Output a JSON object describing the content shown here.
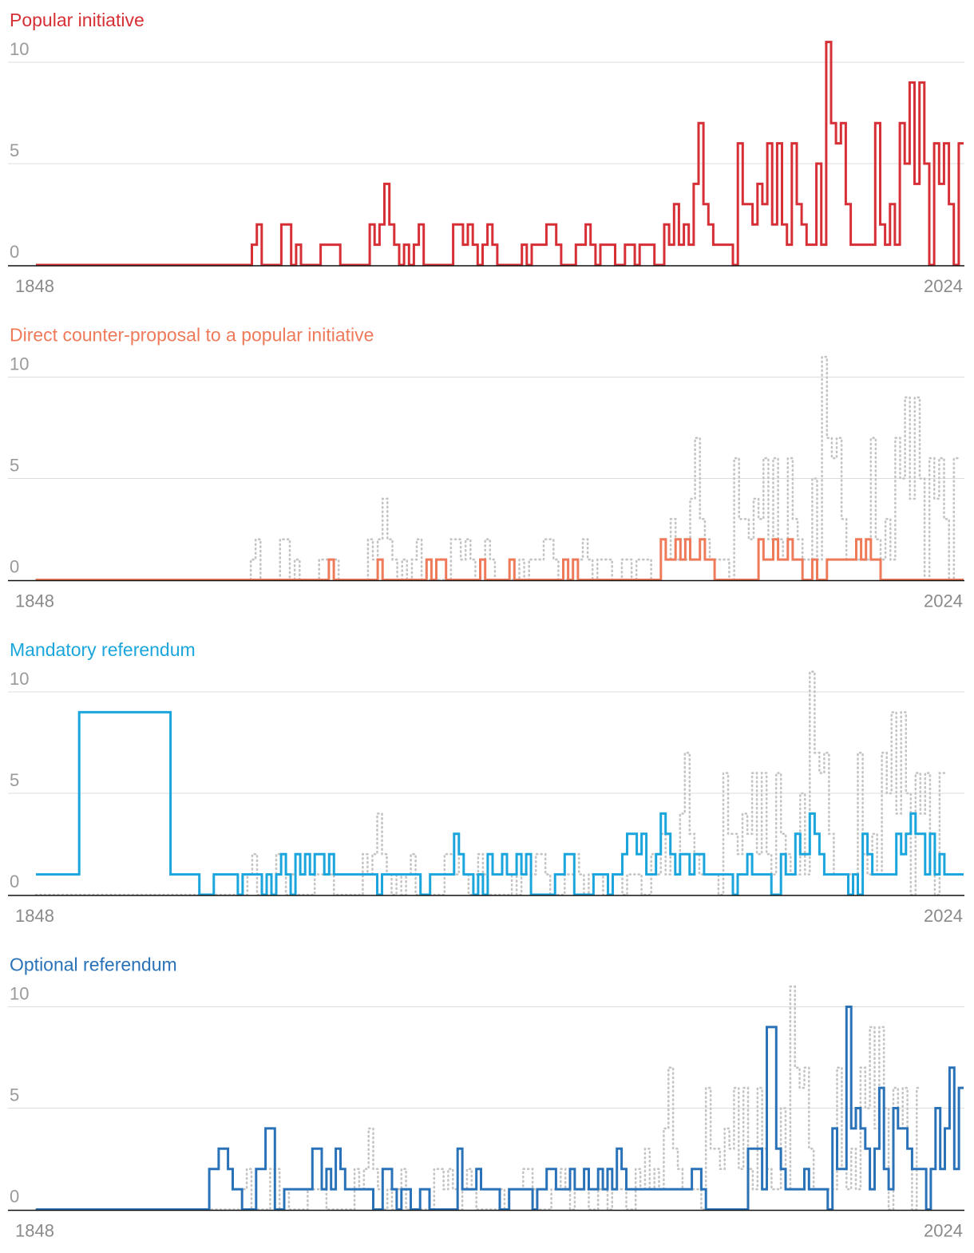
{
  "chart_data": [
    {
      "type": "line",
      "title": "Popular initiative",
      "color": "#d62f36",
      "x_start_label": "1848",
      "x_end_label": "2024",
      "yticks": [
        "0",
        "5",
        "10"
      ],
      "ylim": [
        0,
        10.5
      ],
      "xlim": [
        1848,
        2024
      ],
      "show_background": false,
      "values": [
        0,
        0,
        0,
        0,
        0,
        0,
        0,
        0,
        0,
        0,
        0,
        0,
        0,
        0,
        0,
        0,
        0,
        0,
        0,
        0,
        0,
        0,
        0,
        0,
        0,
        0,
        0,
        0,
        0,
        0,
        0,
        0,
        0,
        0,
        0,
        0,
        0,
        0,
        0,
        0,
        0,
        0,
        0,
        0,
        1,
        2,
        0,
        0,
        0,
        0,
        2,
        2,
        0,
        1,
        0,
        0,
        0,
        0,
        1,
        1,
        1,
        1,
        0,
        0,
        0,
        0,
        0,
        0,
        2,
        1,
        2,
        4,
        2,
        1,
        0,
        1,
        0,
        1,
        2,
        0,
        0,
        0,
        0,
        0,
        0,
        2,
        2,
        1,
        2,
        1,
        0,
        1,
        2,
        1,
        0,
        0,
        0,
        0,
        0,
        1,
        0,
        1,
        1,
        1,
        2,
        2,
        1,
        0,
        0,
        0,
        1,
        1,
        2,
        1,
        0,
        1,
        1,
        1,
        0,
        0,
        1,
        1,
        0,
        1,
        1,
        1,
        0,
        0,
        2,
        1,
        3,
        1,
        2,
        1,
        4,
        7,
        3,
        2,
        1,
        1,
        1,
        1,
        0,
        6,
        3,
        3,
        2,
        4,
        3,
        6,
        2,
        6,
        2,
        1,
        6,
        3,
        2,
        1,
        1,
        5,
        1,
        11,
        7,
        6,
        7,
        3,
        1,
        1,
        1,
        1,
        1,
        7,
        2,
        1,
        3,
        1,
        7,
        5,
        9,
        4,
        9,
        5,
        0,
        6,
        4,
        6,
        3,
        0,
        6
      ]
    },
    {
      "type": "line",
      "title": "Direct counter-proposal to a popular initiative",
      "color": "#ef7a5a",
      "x_start_label": "1848",
      "x_end_label": "2024",
      "yticks": [
        "0",
        "5",
        "10"
      ],
      "ylim": [
        0,
        10.5
      ],
      "xlim": [
        1848,
        2024
      ],
      "show_background": true,
      "values": [
        0,
        0,
        0,
        0,
        0,
        0,
        0,
        0,
        0,
        0,
        0,
        0,
        0,
        0,
        0,
        0,
        0,
        0,
        0,
        0,
        0,
        0,
        0,
        0,
        0,
        0,
        0,
        0,
        0,
        0,
        0,
        0,
        0,
        0,
        0,
        0,
        0,
        0,
        0,
        0,
        0,
        0,
        0,
        0,
        0,
        0,
        0,
        0,
        0,
        0,
        0,
        0,
        0,
        0,
        0,
        0,
        0,
        0,
        0,
        0,
        1,
        0,
        0,
        0,
        0,
        0,
        0,
        0,
        0,
        0,
        1,
        0,
        0,
        0,
        0,
        0,
        0,
        0,
        0,
        0,
        1,
        0,
        1,
        1,
        0,
        0,
        0,
        0,
        0,
        0,
        0,
        1,
        0,
        0,
        0,
        0,
        0,
        1,
        0,
        0,
        0,
        0,
        0,
        0,
        0,
        0,
        0,
        0,
        1,
        0,
        1,
        0,
        0,
        0,
        0,
        0,
        0,
        0,
        0,
        0,
        0,
        0,
        0,
        0,
        0,
        0,
        0,
        0,
        2,
        1,
        1,
        2,
        1,
        2,
        1,
        1,
        2,
        1,
        1,
        0,
        0,
        0,
        0,
        0,
        0,
        0,
        0,
        0,
        2,
        1,
        1,
        2,
        1,
        1,
        2,
        1,
        1,
        0,
        0,
        1,
        0,
        0,
        1,
        1,
        1,
        1,
        1,
        1,
        2,
        1,
        2,
        1,
        1,
        0,
        0,
        0,
        0,
        0,
        0,
        0,
        0,
        0,
        0,
        0,
        0,
        0,
        0,
        0,
        0,
        0
      ]
    },
    {
      "type": "line",
      "title": "Mandatory referendum",
      "color": "#1aa6dc",
      "x_start_label": "1848",
      "x_end_label": "2024",
      "yticks": [
        "0",
        "5",
        "10"
      ],
      "ylim": [
        0,
        10.5
      ],
      "xlim": [
        1848,
        2024
      ],
      "show_background": true,
      "values": [
        1,
        1,
        1,
        1,
        1,
        1,
        1,
        1,
        1,
        9,
        9,
        9,
        9,
        9,
        9,
        9,
        9,
        9,
        9,
        9,
        9,
        9,
        9,
        9,
        9,
        9,
        9,
        9,
        1,
        1,
        1,
        1,
        1,
        1,
        0,
        0,
        0,
        1,
        1,
        1,
        1,
        1,
        0,
        1,
        1,
        1,
        1,
        0,
        1,
        0,
        1,
        2,
        1,
        0,
        2,
        1,
        2,
        1,
        2,
        2,
        1,
        2,
        1,
        1,
        1,
        1,
        1,
        1,
        1,
        1,
        1,
        0,
        1,
        1,
        1,
        1,
        1,
        1,
        1,
        1,
        0,
        0,
        1,
        1,
        1,
        1,
        1,
        3,
        2,
        1,
        1,
        0,
        1,
        0,
        2,
        1,
        1,
        2,
        1,
        1,
        2,
        1,
        2,
        0,
        0,
        0,
        0,
        0,
        1,
        1,
        2,
        2,
        0,
        0,
        0,
        0,
        1,
        1,
        1,
        0,
        1,
        1,
        2,
        3,
        3,
        2,
        3,
        1,
        1,
        2,
        4,
        3,
        2,
        1,
        2,
        2,
        1,
        2,
        2,
        1,
        1,
        1,
        1,
        1,
        1,
        0,
        1,
        1,
        2,
        1,
        1,
        1,
        1,
        0,
        0,
        2,
        1,
        1,
        3,
        2,
        2,
        4,
        3,
        2,
        1,
        1,
        1,
        1,
        1,
        0,
        1,
        0,
        3,
        2,
        1,
        1,
        1,
        1,
        1,
        3,
        2,
        3,
        4,
        3,
        3,
        1,
        3,
        1,
        2,
        1,
        1,
        1,
        1
      ]
    },
    {
      "type": "line",
      "title": "Optional referendum",
      "color": "#2a72b8",
      "x_start_label": "1848",
      "x_end_label": "2024",
      "yticks": [
        "0",
        "5",
        "10"
      ],
      "ylim": [
        0,
        10.5
      ],
      "xlim": [
        1848,
        2024
      ],
      "show_background": true,
      "values": [
        0,
        0,
        0,
        0,
        0,
        0,
        0,
        0,
        0,
        0,
        0,
        0,
        0,
        0,
        0,
        0,
        0,
        0,
        0,
        0,
        0,
        0,
        0,
        0,
        0,
        0,
        0,
        0,
        0,
        0,
        0,
        0,
        0,
        0,
        0,
        0,
        0,
        2,
        2,
        3,
        3,
        2,
        1,
        1,
        0,
        0,
        0,
        2,
        2,
        4,
        4,
        0,
        0,
        1,
        1,
        1,
        1,
        1,
        1,
        3,
        3,
        1,
        2,
        1,
        3,
        2,
        1,
        1,
        1,
        1,
        1,
        1,
        0,
        0,
        2,
        2,
        1,
        0,
        1,
        1,
        0,
        0,
        1,
        1,
        0,
        0,
        0,
        0,
        0,
        0,
        3,
        1,
        1,
        1,
        2,
        1,
        1,
        1,
        1,
        0,
        0,
        1,
        1,
        1,
        1,
        1,
        0,
        1,
        1,
        2,
        2,
        1,
        1,
        1,
        2,
        1,
        1,
        2,
        1,
        1,
        2,
        1,
        2,
        1,
        3,
        2,
        1,
        1,
        1,
        1,
        1,
        1,
        1,
        1,
        1,
        1,
        1,
        1,
        1,
        1,
        2,
        2,
        1,
        0,
        0,
        0,
        0,
        0,
        0,
        0,
        0,
        0,
        3,
        3,
        3,
        1,
        9,
        9,
        3,
        2,
        1,
        1,
        1,
        1,
        2,
        1,
        1,
        1,
        1,
        0,
        4,
        2,
        2,
        10,
        4,
        5,
        4,
        3,
        1,
        3,
        6,
        2,
        1,
        5,
        4,
        4,
        3,
        2,
        2,
        2,
        0,
        2,
        5,
        2,
        4,
        7,
        2,
        6
      ]
    }
  ]
}
